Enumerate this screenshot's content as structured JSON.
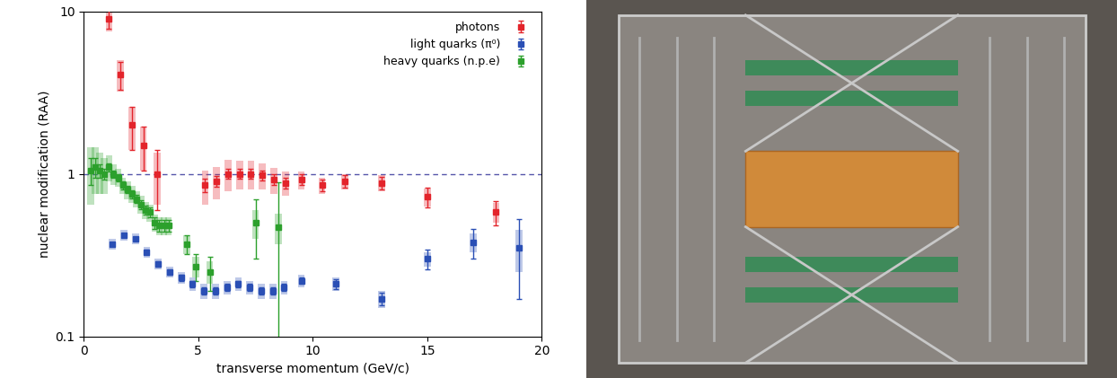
{
  "chart_data": {
    "type": "scatter",
    "x_label": "transverse momentum (GeV/c)",
    "y_label": "nuclear modification (RAA)",
    "log": "y",
    "xlim": [
      0,
      20
    ],
    "xticks": [
      0,
      5,
      10,
      15,
      20
    ],
    "ylim": [
      0.1,
      10
    ],
    "yticks": [
      0.1,
      1,
      10
    ],
    "legend": "upper right",
    "reference_line": 1,
    "series": [
      {
        "name": "photons",
        "color": "#e3242b",
        "marker": "square",
        "x": [
          1.1,
          1.6,
          2.1,
          2.6,
          3.2,
          5.3,
          5.8,
          6.3,
          6.8,
          7.3,
          7.8,
          8.3,
          8.8,
          9.5,
          10.4,
          11.4,
          13.0,
          15.0,
          18.0
        ],
        "values": [
          9.0,
          4.1,
          2.0,
          1.5,
          1.0,
          0.85,
          0.9,
          1.0,
          1.0,
          1.0,
          0.98,
          0.92,
          0.88,
          0.92,
          0.85,
          0.9,
          0.88,
          0.72,
          0.58
        ],
        "errors": [
          1.2,
          0.8,
          0.6,
          0.45,
          0.4,
          0.08,
          0.07,
          0.07,
          0.07,
          0.07,
          0.07,
          0.07,
          0.07,
          0.07,
          0.07,
          0.08,
          0.08,
          0.1,
          0.1
        ],
        "systematics": [
          1.5,
          0.9,
          0.6,
          0.45,
          0.35,
          0.2,
          0.2,
          0.22,
          0.2,
          0.2,
          0.18,
          0.17,
          0.15,
          0.12,
          0.1,
          0.1,
          0.1,
          0.09,
          0.08
        ]
      },
      {
        "name": "light quarks (π⁰)",
        "color": "#2a4fb5",
        "marker": "square",
        "x": [
          1.25,
          1.75,
          2.25,
          2.75,
          3.25,
          3.75,
          4.25,
          4.75,
          5.25,
          5.75,
          6.25,
          6.75,
          7.25,
          7.75,
          8.25,
          8.75,
          9.5,
          11.0,
          13.0,
          15.0,
          17.0,
          19.0
        ],
        "values": [
          0.37,
          0.42,
          0.4,
          0.33,
          0.28,
          0.25,
          0.23,
          0.21,
          0.19,
          0.19,
          0.2,
          0.21,
          0.2,
          0.19,
          0.19,
          0.2,
          0.22,
          0.21,
          0.17,
          0.3,
          0.38,
          0.35
        ],
        "errors": [
          0.01,
          0.01,
          0.01,
          0.01,
          0.01,
          0.01,
          0.01,
          0.01,
          0.01,
          0.01,
          0.01,
          0.01,
          0.01,
          0.01,
          0.01,
          0.01,
          0.01,
          0.015,
          0.015,
          0.04,
          0.08,
          0.18
        ],
        "systematics": [
          0.03,
          0.03,
          0.03,
          0.025,
          0.02,
          0.02,
          0.02,
          0.02,
          0.02,
          0.02,
          0.02,
          0.02,
          0.02,
          0.02,
          0.02,
          0.02,
          0.02,
          0.02,
          0.02,
          0.03,
          0.05,
          0.1
        ]
      },
      {
        "name": "heavy quarks (n.p.e)",
        "color": "#2ca02c",
        "marker": "square",
        "x": [
          0.3,
          0.5,
          0.7,
          0.9,
          1.1,
          1.3,
          1.5,
          1.7,
          1.9,
          2.1,
          2.3,
          2.5,
          2.7,
          2.9,
          3.1,
          3.3,
          3.5,
          3.7,
          4.5,
          4.9,
          5.5,
          7.5,
          8.5
        ],
        "values": [
          1.05,
          1.1,
          1.05,
          1.0,
          1.1,
          1.0,
          0.95,
          0.85,
          0.8,
          0.75,
          0.7,
          0.65,
          0.6,
          0.58,
          0.5,
          0.48,
          0.48,
          0.48,
          0.37,
          0.27,
          0.25,
          0.5,
          0.47
        ],
        "errors": [
          0.2,
          0.15,
          0.1,
          0.08,
          0.06,
          0.05,
          0.05,
          0.05,
          0.04,
          0.04,
          0.04,
          0.04,
          0.04,
          0.04,
          0.04,
          0.04,
          0.04,
          0.04,
          0.05,
          0.05,
          0.06,
          0.2,
          0.42
        ],
        "systematics": [
          0.4,
          0.35,
          0.3,
          0.25,
          0.2,
          0.15,
          0.12,
          0.1,
          0.1,
          0.09,
          0.08,
          0.08,
          0.07,
          0.07,
          0.06,
          0.06,
          0.06,
          0.06,
          0.05,
          0.04,
          0.04,
          0.1,
          0.1
        ]
      }
    ]
  }
}
